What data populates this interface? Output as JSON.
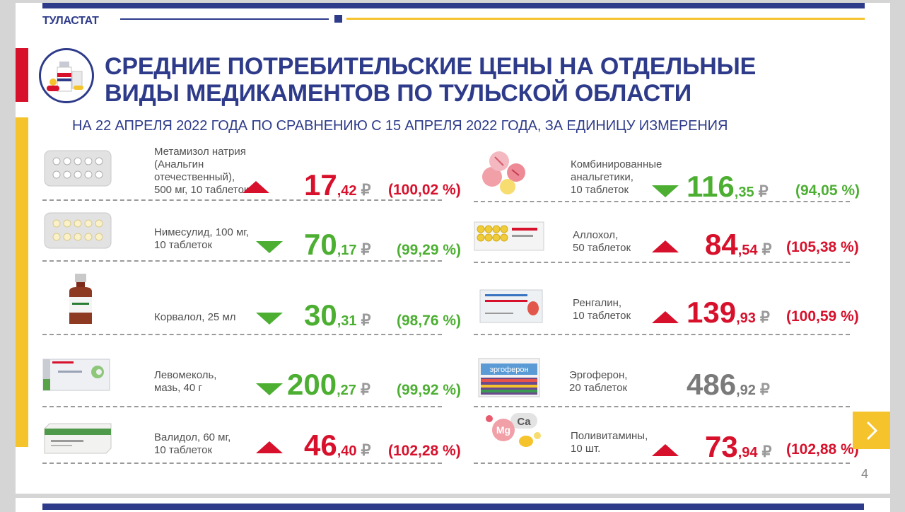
{
  "header": {
    "brand": "ТУЛАСТАТ",
    "title_line1": "СРЕДНИЕ ПОТРЕБИТЕЛЬСКИЕ ЦЕНЫ НА ОТДЕЛЬНЫЕ",
    "title_line2": "ВИДЫ МЕДИКАМЕНТОВ ПО ТУЛЬСКОЙ ОБЛАСТИ",
    "subtitle": "НА 22 АПРЕЛЯ 2022 ГОДА ПО СРАВНЕНИЮ С 15 АПРЕЛЯ 2022 ГОДА, ЗА ЕДИНИЦУ ИЗМЕРЕНИЯ"
  },
  "colors": {
    "brand_blue": "#2e3b8a",
    "accent_yellow": "#f5c32c",
    "accent_red": "#d7102b",
    "down_green": "#4caf32",
    "neutral_gray": "#7a7a7a"
  },
  "currency": "₽",
  "items_left": [
    {
      "icon": "pill-blister-icon",
      "name": [
        "Метамизол натрия",
        "(Анальгин",
        "отечественный),",
        "500 мг, 10 таблеток"
      ],
      "trend": "up",
      "price_int": "17",
      "price_dec": ",42",
      "pct": "(100,02 %)"
    },
    {
      "icon": "pill-blister-icon",
      "name": [
        "Нимесулид, 100 мг,",
        "10 таблеток"
      ],
      "trend": "down",
      "price_int": "70",
      "price_dec": ",17",
      "pct": "(99,29 %)"
    },
    {
      "icon": "bottle-icon",
      "name": [
        "Корвалол, 25 мл"
      ],
      "trend": "down",
      "price_int": "30",
      "price_dec": ",31",
      "pct": "(98,76 %)"
    },
    {
      "icon": "ointment-box-icon",
      "name": [
        "Левомеколь,",
        "мазь, 40 г"
      ],
      "trend": "down",
      "price_int": "200",
      "price_dec": ",27",
      "pct": "(99,92 %)"
    },
    {
      "icon": "tablet-box-icon",
      "name": [
        "Валидол, 60 мг,",
        "10 таблеток"
      ],
      "trend": "up",
      "price_int": "46",
      "price_dec": ",40",
      "pct": "(102,28 %)"
    }
  ],
  "items_right": [
    {
      "icon": "pills-icon",
      "name": [
        "Комбинированные",
        "анальгетики,",
        "10 таблеток"
      ],
      "trend": "down",
      "price_int": "116",
      "price_dec": ",35",
      "pct": "(94,05 %)"
    },
    {
      "icon": "tablet-box-icon",
      "name": [
        "Аллохол,",
        "50 таблеток"
      ],
      "trend": "up",
      "price_int": "84",
      "price_dec": ",54",
      "pct": "(105,38 %)"
    },
    {
      "icon": "tablet-box-icon",
      "name": [
        "Ренгалин,",
        "10 таблеток"
      ],
      "trend": "up",
      "price_int": "139",
      "price_dec": ",93",
      "pct": "(100,59 %)"
    },
    {
      "icon": "tablet-box-icon",
      "name": [
        "Эргоферон,",
        "20 таблеток"
      ],
      "trend": "none",
      "price_int": "486",
      "price_dec": ",92",
      "pct": ""
    },
    {
      "icon": "vitamins-icon",
      "name": [
        "Поливитамины,",
        "10 шт."
      ],
      "trend": "up",
      "price_int": "73",
      "price_dec": ",94",
      "pct": "(102,88 %)"
    }
  ],
  "icon_text": {
    "mg": "Mg",
    "ca": "Ca",
    "ergoferon": "эргоферон"
  },
  "footer": {
    "page": "4"
  }
}
